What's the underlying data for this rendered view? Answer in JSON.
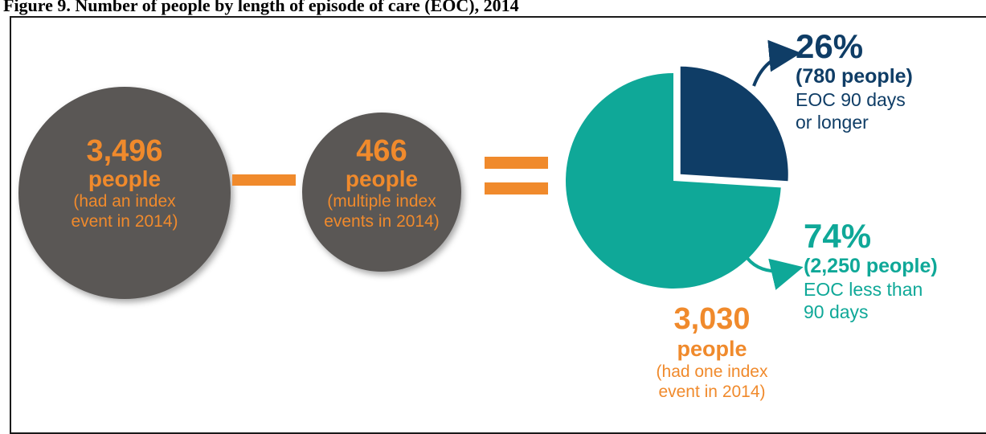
{
  "caption": "Figure 9. Number of people by length of episode of care (EOC), 2014",
  "colors": {
    "circle_fill": "#5a5755",
    "orange": "#f08a2c",
    "navy": "#0f3d66",
    "teal": "#0fa898"
  },
  "left_circle": {
    "number": "3,496",
    "word": "people",
    "paren_line1": "(had an index",
    "paren_line2": "event in 2014)"
  },
  "middle_circle": {
    "number": "466",
    "word": "people",
    "paren_line1": "(multiple index",
    "paren_line2": "events in 2014)"
  },
  "operators": {
    "minus": "minus",
    "equals": "equals"
  },
  "result": {
    "number": "3,030",
    "word": "people",
    "paren_line1": "(had one index",
    "paren_line2": "event in 2014)"
  },
  "chart_data": {
    "type": "pie",
    "series": [
      {
        "percent_label": "26%",
        "count_label": "(780 people)",
        "desc_line1": "EOC 90 days",
        "desc_line2": "or longer",
        "value": 26,
        "people": 780,
        "color": "#0f3d66",
        "exploded": true
      },
      {
        "percent_label": "74%",
        "count_label": "(2,250 people)",
        "desc_line1": "EOC less than",
        "desc_line2": "90 days",
        "value": 74,
        "people": 2250,
        "color": "#0fa898",
        "exploded": false
      }
    ]
  }
}
